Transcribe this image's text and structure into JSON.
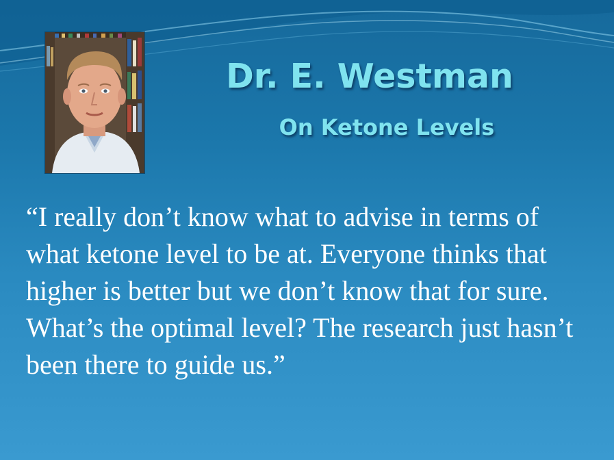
{
  "slide": {
    "title": "Dr. E. Westman",
    "subtitle": "On Ketone Levels",
    "quote": "“I really don’t know what to advise in terms of what ketone level to be at. Everyone thinks that higher is better but we don’t know that for sure. What’s the optimal level? The research just hasn’t been there to guide us.”"
  },
  "colors": {
    "background": "#1b77ab",
    "title": "#7fe3ef",
    "quote": "#ffffff"
  }
}
